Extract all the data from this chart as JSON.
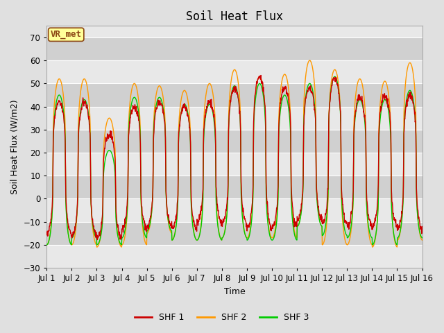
{
  "title": "Soil Heat Flux",
  "xlabel": "Time",
  "ylabel": "Soil Heat Flux (W/m2)",
  "ylim": [
    -30,
    75
  ],
  "yticks": [
    -30,
    -20,
    -10,
    0,
    10,
    20,
    30,
    40,
    50,
    60,
    70
  ],
  "colors": {
    "SHF 1": "#cc0000",
    "SHF 2": "#ff9900",
    "SHF 3": "#00cc00"
  },
  "linewidth": 1.0,
  "bg_color": "#e0e0e0",
  "plot_bg_light": "#dcdcdc",
  "plot_bg_dark": "#c8c8c8",
  "annotation_text": "VR_met",
  "legend_bg": "#ffff99",
  "legend_border": "#8b4513",
  "days": 15,
  "xtick_labels": [
    "Jul 1",
    "Jul 2",
    "Jul 3",
    "Jul 4",
    "Jul 5",
    "Jul 6",
    "Jul 7",
    "Jul 8",
    "Jul 9",
    "Jul 10",
    "Jul 11",
    "Jul 12",
    "Jul 13",
    "Jul 14",
    "Jul 15",
    "Jul 16"
  ],
  "shf1_peaks": [
    42,
    42,
    28,
    40,
    42,
    40,
    42,
    48,
    53,
    48,
    48,
    52,
    44,
    45,
    45
  ],
  "shf2_peaks": [
    52,
    52,
    35,
    50,
    49,
    47,
    50,
    56,
    53,
    54,
    60,
    56,
    52,
    51,
    59
  ],
  "shf3_peaks": [
    45,
    43,
    21,
    44,
    44,
    41,
    41,
    49,
    50,
    45,
    50,
    53,
    43,
    43,
    47
  ],
  "shf1_troughs": [
    -15,
    -16,
    -17,
    -13,
    -12,
    -13,
    -10,
    -11,
    -13,
    -12,
    -9,
    -11,
    -12,
    -12,
    -13
  ],
  "shf2_troughs": [
    -20,
    -20,
    -21,
    -20,
    -15,
    -18,
    -18,
    -17,
    -17,
    -17,
    -12,
    -20,
    -20,
    -21,
    -18
  ],
  "shf3_troughs": [
    -20,
    -17,
    -20,
    -17,
    -14,
    -18,
    -18,
    -17,
    -18,
    -18,
    -12,
    -16,
    -17,
    -20,
    -17
  ],
  "band_colors": [
    "#e8e8e8",
    "#d0d0d0"
  ]
}
